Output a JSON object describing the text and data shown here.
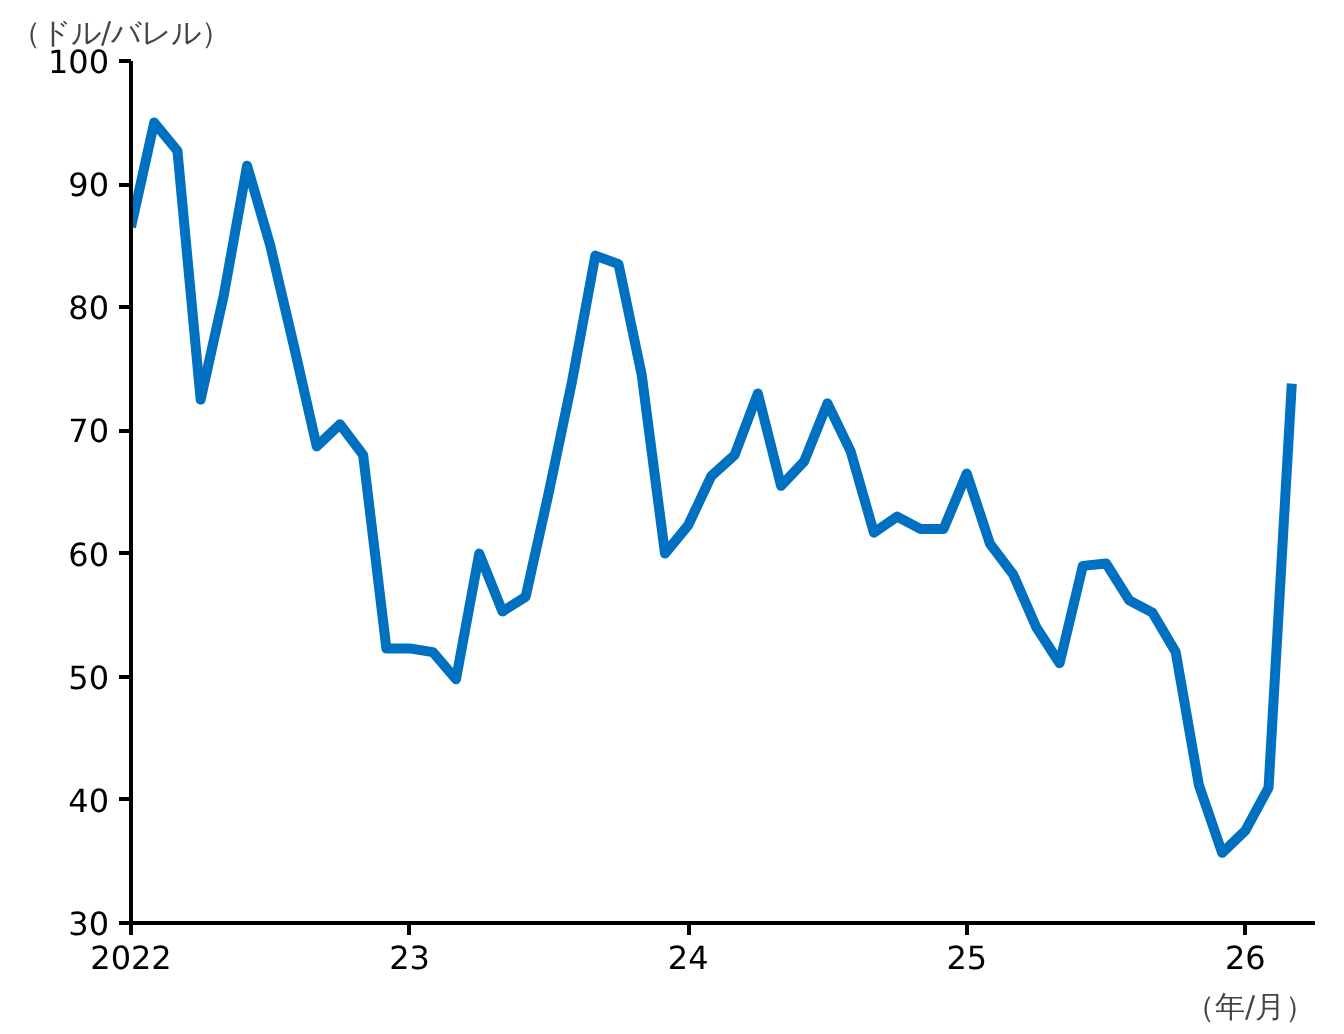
{
  "chart_data": {
    "type": "line",
    "ylabel": "（ドル/バレル）",
    "xlabel": "（年/月）",
    "x": [
      2022.0,
      2022.0833,
      2022.1667,
      2022.25,
      2022.3333,
      2022.4167,
      2022.5,
      2022.5833,
      2022.6667,
      2022.75,
      2022.8333,
      2022.9167,
      2023.0,
      2023.0833,
      2023.1667,
      2023.25,
      2023.3333,
      2023.4167,
      2023.5,
      2023.5833,
      2023.6667,
      2023.75,
      2023.8333,
      2023.9167,
      2024.0,
      2024.0833,
      2024.1667,
      2024.25,
      2024.3333,
      2024.4167,
      2024.5,
      2024.5833,
      2024.6667,
      2024.75,
      2024.8333,
      2024.9167,
      2025.0,
      2025.0833,
      2025.1667,
      2025.25,
      2025.3333,
      2025.4167,
      2025.5,
      2025.5833,
      2025.6667,
      2025.75,
      2025.8333,
      2025.9167,
      2026.0,
      2026.0833,
      2026.1667
    ],
    "series": [
      {
        "color": "#0070c0",
        "values": [
          86.5,
          95,
          92.7,
          72.5,
          81,
          91.5,
          85,
          77,
          68.7,
          70.5,
          68,
          52.3,
          52.3,
          52,
          49.8,
          60,
          55.3,
          56.5,
          65,
          74,
          84.2,
          83.5,
          74.5,
          60,
          62.3,
          66.3,
          68,
          73,
          65.5,
          67.5,
          72.2,
          68.3,
          61.7,
          63,
          62,
          62,
          66.5,
          60.8,
          58.3,
          54,
          51.1,
          59,
          59.2,
          56.2,
          55.2,
          52,
          41.2,
          35.7,
          37.5,
          41,
          73.8
        ]
      }
    ],
    "xlim": [
      2022,
      2026.25
    ],
    "xticks": [
      {
        "value": 2022,
        "label": "2022"
      },
      {
        "value": 2023,
        "label": "23"
      },
      {
        "value": 2024,
        "label": "24"
      },
      {
        "value": 2025,
        "label": "25"
      },
      {
        "value": 2026,
        "label": "26"
      }
    ],
    "ylim": [
      30,
      100
    ],
    "yticks": [
      30,
      40,
      50,
      60,
      70,
      80,
      90,
      100
    ],
    "grid": false,
    "marker": "none",
    "line_style": "solid"
  }
}
